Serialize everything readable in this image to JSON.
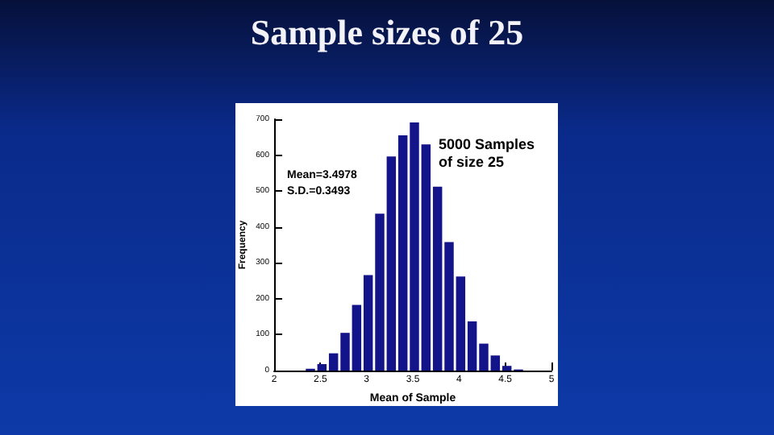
{
  "chart_data": {
    "type": "histogram",
    "title": "Sample sizes of 25",
    "xlabel": "Mean of Sample",
    "ylabel": "Frequency",
    "bins": [
      2.33,
      2.455,
      2.58,
      2.705,
      2.83,
      2.955,
      3.08,
      3.205,
      3.33,
      3.455,
      3.58,
      3.705,
      3.83,
      3.955,
      4.08,
      4.205,
      4.33,
      4.455,
      4.58,
      4.705
    ],
    "values": [
      5,
      18,
      48,
      105,
      183,
      266,
      437,
      596,
      655,
      691,
      630,
      512,
      358,
      262,
      137,
      75,
      42,
      13,
      3
    ],
    "color": "#14148a",
    "xlim": [
      2,
      5
    ],
    "xticks": [
      2,
      2.5,
      3,
      3.5,
      4,
      4.5,
      5
    ],
    "ylim": [
      0,
      700
    ],
    "yticks": [
      0,
      100,
      200,
      300,
      400,
      500,
      600,
      700
    ],
    "grid": false,
    "annotations": [
      "5000 Samples\nof size 25",
      "Mean=3.4978\nS.D.=0.3493"
    ]
  }
}
